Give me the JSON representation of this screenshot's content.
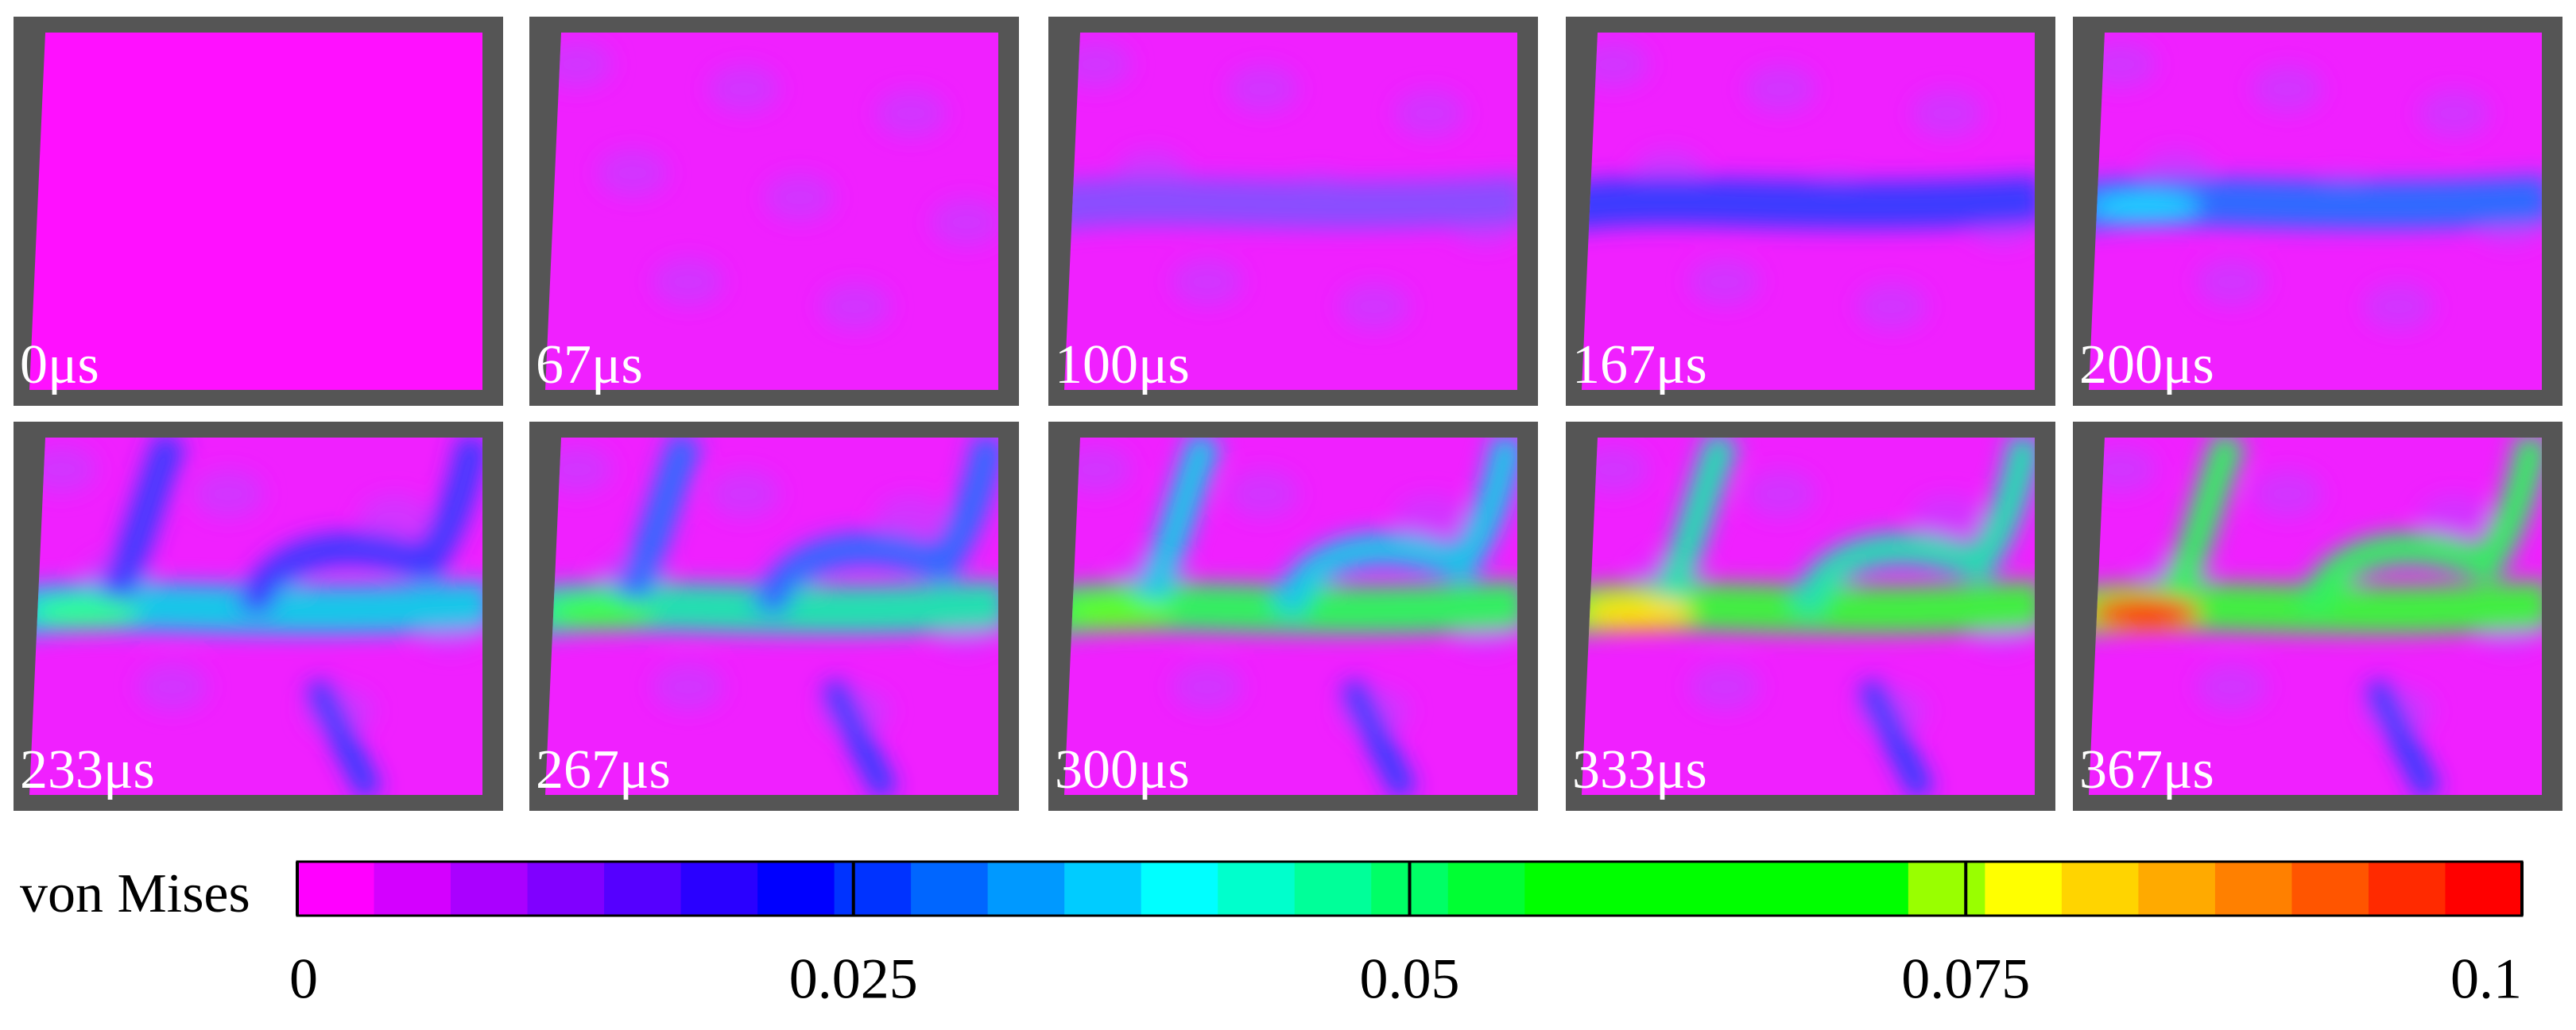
{
  "panels": [
    {
      "label": "0μs"
    },
    {
      "label": "67μs"
    },
    {
      "label": "100μs"
    },
    {
      "label": "167μs"
    },
    {
      "label": "200μs"
    },
    {
      "label": "233μs"
    },
    {
      "label": "267μs"
    },
    {
      "label": "300μs"
    },
    {
      "label": "333μs"
    },
    {
      "label": "367μs"
    }
  ],
  "colorbar": {
    "label": "von Mises",
    "lim": [
      0,
      0.1
    ],
    "ticks": [
      0,
      0.025,
      0.05,
      0.075,
      0.1
    ],
    "colors": [
      "#ff00ff",
      "#d400ff",
      "#aa00ff",
      "#8000ff",
      "#5500ff",
      "#2a00ff",
      "#0000ff",
      "#0033ff",
      "#0066ff",
      "#0099ff",
      "#00ccff",
      "#00ffff",
      "#00ffcc",
      "#00ff99",
      "#00ff66",
      "#00ff33",
      "#00ff00",
      "#00ff00",
      "#00ff00",
      "#00ff00",
      "#00ff00",
      "#99ff00",
      "#ffff00",
      "#ffd400",
      "#ffaa00",
      "#ff8000",
      "#ff5500",
      "#ff2a00",
      "#ff0000"
    ]
  }
}
